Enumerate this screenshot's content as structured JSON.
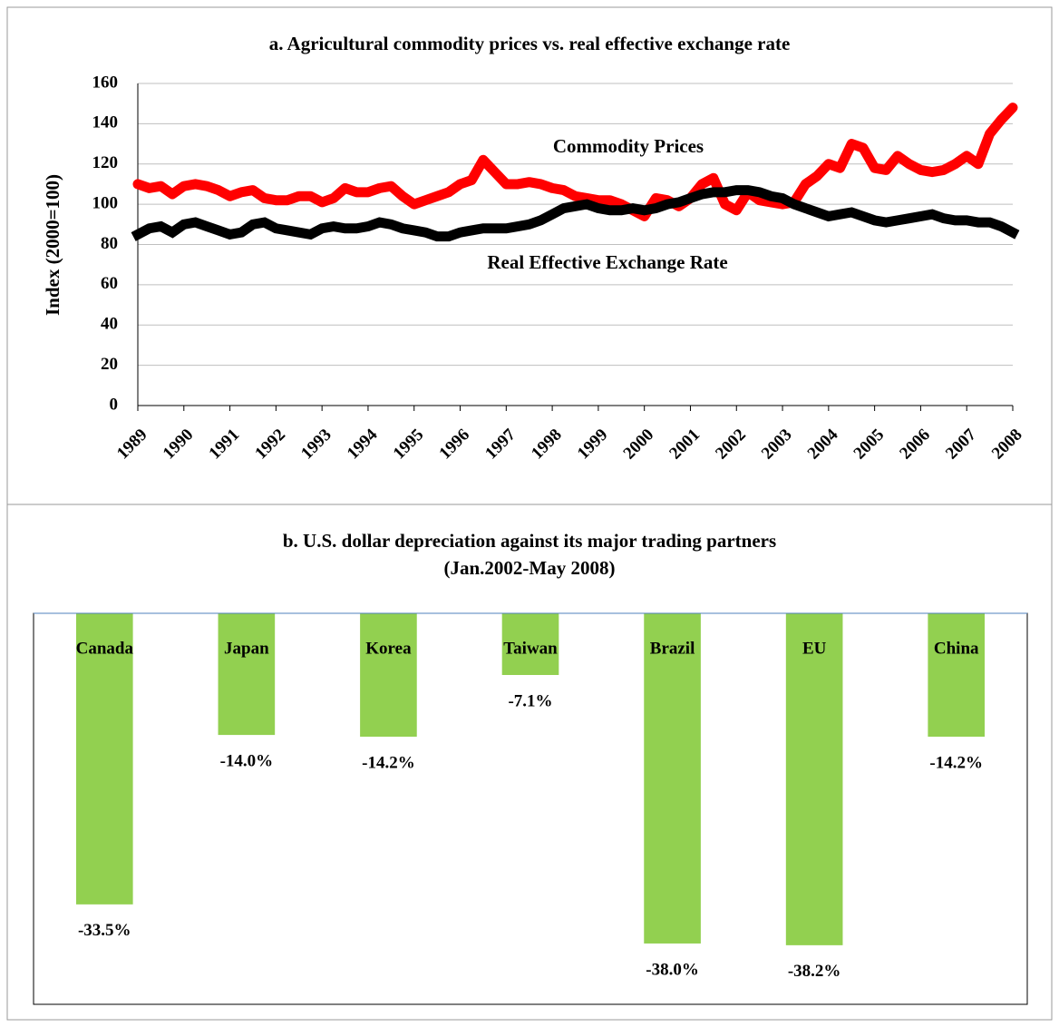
{
  "chart_data": [
    {
      "type": "line",
      "title": "a. Agricultural commodity prices vs. real effective exchange rate",
      "y_label": "Index (2000=100)",
      "annotations": [
        "Commodity Prices",
        "Real Effective Exchange Rate"
      ],
      "x": [
        1989,
        1989.25,
        1989.5,
        1989.75,
        1990,
        1990.25,
        1990.5,
        1990.75,
        1991,
        1991.25,
        1991.5,
        1991.75,
        1992,
        1992.25,
        1992.5,
        1992.75,
        1993,
        1993.25,
        1993.5,
        1993.75,
        1994,
        1994.25,
        1994.5,
        1994.75,
        1995,
        1995.25,
        1995.5,
        1995.75,
        1996,
        1996.25,
        1996.5,
        1996.75,
        1997,
        1997.25,
        1997.5,
        1997.75,
        1998,
        1998.25,
        1998.5,
        1998.75,
        1999,
        1999.25,
        1999.5,
        1999.75,
        2000,
        2000.25,
        2000.5,
        2000.75,
        2001,
        2001.25,
        2001.5,
        2001.75,
        2002,
        2002.25,
        2002.5,
        2002.75,
        2003,
        2003.25,
        2003.5,
        2003.75,
        2004,
        2004.25,
        2004.5,
        2004.75,
        2005,
        2005.25,
        2005.5,
        2005.75,
        2006,
        2006.25,
        2006.5,
        2006.75,
        2007,
        2007.25,
        2007.5,
        2007.75,
        2008
      ],
      "series": [
        {
          "name": "Commodity Prices",
          "color": "#ff0000",
          "values": [
            110,
            108,
            109,
            105,
            109,
            110,
            109,
            107,
            104,
            106,
            107,
            103,
            102,
            102,
            104,
            104,
            101,
            103,
            108,
            106,
            106,
            108,
            109,
            104,
            100,
            102,
            104,
            106,
            110,
            112,
            122,
            116,
            110,
            110,
            111,
            110,
            108,
            107,
            104,
            103,
            102,
            102,
            100,
            97,
            94,
            103,
            102,
            99,
            103,
            110,
            113,
            100,
            97,
            106,
            102,
            101,
            100,
            101,
            110,
            114,
            120,
            118,
            130,
            128,
            118,
            117,
            124,
            120,
            117,
            116,
            117,
            120,
            124,
            120,
            135,
            142,
            148
          ]
        },
        {
          "name": "Real Effective Exchange Rate",
          "color": "#000000",
          "values": [
            85,
            88,
            89,
            86,
            90,
            91,
            89,
            87,
            85,
            86,
            90,
            91,
            88,
            87,
            86,
            85,
            88,
            89,
            88,
            88,
            89,
            91,
            90,
            88,
            87,
            86,
            84,
            84,
            86,
            87,
            88,
            88,
            88,
            89,
            90,
            92,
            95,
            98,
            99,
            100,
            98,
            97,
            97,
            98,
            97,
            98,
            100,
            101,
            103,
            105,
            106,
            106,
            107,
            107,
            106,
            104,
            103,
            100,
            98,
            96,
            94,
            95,
            96,
            94,
            92,
            91,
            92,
            93,
            94,
            95,
            93,
            92,
            92,
            91,
            91,
            89,
            86
          ]
        }
      ],
      "xlim": [
        1989,
        2008
      ],
      "xticks": [
        1989,
        1990,
        1991,
        1992,
        1993,
        1994,
        1995,
        1996,
        1997,
        1998,
        1999,
        2000,
        2001,
        2002,
        2003,
        2004,
        2005,
        2006,
        2007,
        2008
      ],
      "ylim": [
        0,
        160
      ],
      "yticks": [
        0,
        20,
        40,
        60,
        80,
        100,
        120,
        140,
        160
      ],
      "grid": true
    },
    {
      "type": "bar",
      "title": "b. U.S. dollar depreciation against its major trading partners",
      "subtitle": "(Jan.2002-May 2008)",
      "categories": [
        "Canada",
        "Japan",
        "Korea",
        "Taiwan",
        "Brazil",
        "EU",
        "China"
      ],
      "values": [
        -33.5,
        -14.0,
        -14.2,
        -7.1,
        -38.0,
        -38.2,
        -14.2
      ],
      "value_labels": [
        "-33.5%",
        "-14.0%",
        "-14.2%",
        "-7.1%",
        "-38.0%",
        "-38.2%",
        "-14.2%"
      ],
      "color": "#92d050",
      "ylim": [
        -45,
        0
      ]
    }
  ]
}
